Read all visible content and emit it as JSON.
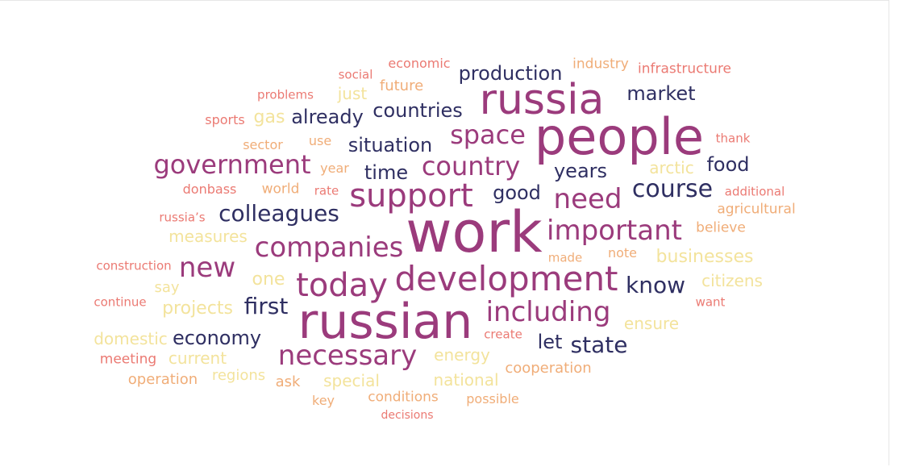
{
  "palette": {
    "c1": "#9b3b7c",
    "c2": "#2f2f62",
    "c3": "#f3e39c",
    "c4": "#f0ad78",
    "c5": "#eb7a73"
  },
  "words": [
    {
      "text": "work",
      "color": "c1"
    },
    {
      "text": "people",
      "color": "c1"
    },
    {
      "text": "russian",
      "color": "c1"
    },
    {
      "text": "russia",
      "color": "c1"
    },
    {
      "text": "development",
      "color": "c1"
    },
    {
      "text": "support",
      "color": "c1"
    },
    {
      "text": "today",
      "color": "c1"
    },
    {
      "text": "necessary",
      "color": "c1"
    },
    {
      "text": "companies",
      "color": "c1"
    },
    {
      "text": "important",
      "color": "c1"
    },
    {
      "text": "including",
      "color": "c1"
    },
    {
      "text": "need",
      "color": "c1"
    },
    {
      "text": "new",
      "color": "c1"
    },
    {
      "text": "space",
      "color": "c1"
    },
    {
      "text": "government",
      "color": "c1"
    },
    {
      "text": "country",
      "color": "c1"
    },
    {
      "text": "course",
      "color": "c2"
    },
    {
      "text": "colleagues",
      "color": "c2"
    },
    {
      "text": "production",
      "color": "c2"
    },
    {
      "text": "countries",
      "color": "c2"
    },
    {
      "text": "market",
      "color": "c2"
    },
    {
      "text": "situation",
      "color": "c2"
    },
    {
      "text": "already",
      "color": "c2"
    },
    {
      "text": "time",
      "color": "c2"
    },
    {
      "text": "years",
      "color": "c2"
    },
    {
      "text": "food",
      "color": "c2"
    },
    {
      "text": "good",
      "color": "c2"
    },
    {
      "text": "know",
      "color": "c2"
    },
    {
      "text": "first",
      "color": "c2"
    },
    {
      "text": "economy",
      "color": "c2"
    },
    {
      "text": "state",
      "color": "c2"
    },
    {
      "text": "let",
      "color": "c2"
    },
    {
      "text": "gas",
      "color": "c3"
    },
    {
      "text": "just",
      "color": "c3"
    },
    {
      "text": "arctic",
      "color": "c3"
    },
    {
      "text": "measures",
      "color": "c3"
    },
    {
      "text": "businesses",
      "color": "c3"
    },
    {
      "text": "one",
      "color": "c3"
    },
    {
      "text": "citizens",
      "color": "c3"
    },
    {
      "text": "projects",
      "color": "c3"
    },
    {
      "text": "say",
      "color": "c3"
    },
    {
      "text": "ensure",
      "color": "c3"
    },
    {
      "text": "domestic",
      "color": "c3"
    },
    {
      "text": "current",
      "color": "c3"
    },
    {
      "text": "energy",
      "color": "c3"
    },
    {
      "text": "regions",
      "color": "c3"
    },
    {
      "text": "special",
      "color": "c3"
    },
    {
      "text": "national",
      "color": "c3"
    },
    {
      "text": "economic",
      "color": "c5"
    },
    {
      "text": "social",
      "color": "c5"
    },
    {
      "text": "industry",
      "color": "c4"
    },
    {
      "text": "infrastructure",
      "color": "c5"
    },
    {
      "text": "problems",
      "color": "c5"
    },
    {
      "text": "future",
      "color": "c4"
    },
    {
      "text": "sports",
      "color": "c5"
    },
    {
      "text": "thank",
      "color": "c5"
    },
    {
      "text": "sector",
      "color": "c4"
    },
    {
      "text": "use",
      "color": "c4"
    },
    {
      "text": "year",
      "color": "c4"
    },
    {
      "text": "donbass",
      "color": "c5"
    },
    {
      "text": "world",
      "color": "c4"
    },
    {
      "text": "rate",
      "color": "c5"
    },
    {
      "text": "additional",
      "color": "c5"
    },
    {
      "text": "russia’s",
      "color": "c5"
    },
    {
      "text": "agricultural",
      "color": "c4"
    },
    {
      "text": "believe",
      "color": "c4"
    },
    {
      "text": "construction",
      "color": "c5"
    },
    {
      "text": "made",
      "color": "c4"
    },
    {
      "text": "note",
      "color": "c4"
    },
    {
      "text": "continue",
      "color": "c5"
    },
    {
      "text": "want",
      "color": "c5"
    },
    {
      "text": "create",
      "color": "c5"
    },
    {
      "text": "meeting",
      "color": "c5"
    },
    {
      "text": "operation",
      "color": "c4"
    },
    {
      "text": "cooperation",
      "color": "c4"
    },
    {
      "text": "ask",
      "color": "c4"
    },
    {
      "text": "key",
      "color": "c4"
    },
    {
      "text": "conditions",
      "color": "c4"
    },
    {
      "text": "possible",
      "color": "c4"
    },
    {
      "text": "decisions",
      "color": "c5"
    }
  ]
}
